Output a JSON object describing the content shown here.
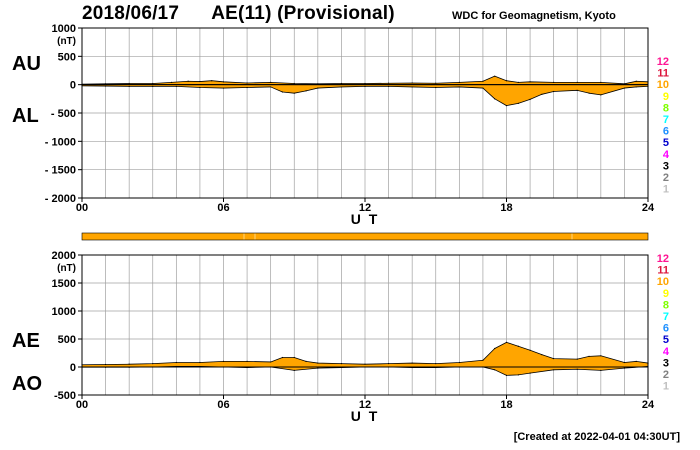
{
  "header": {
    "date": "2018/06/17",
    "title": "AE(11) (Provisional)",
    "credit": "WDC for Geomagnetism, Kyoto",
    "created": "[Created at 2022-04-01 04:30UT]"
  },
  "colors": {
    "fill": "#ffa500",
    "outline": "#000000",
    "grid": "#a0a0a0",
    "status_bar": "#ffa500"
  },
  "station_count_legend": [
    {
      "label": "12",
      "color": "#ff1493"
    },
    {
      "label": "11",
      "color": "#dc143c"
    },
    {
      "label": "10",
      "color": "#ffa500"
    },
    {
      "label": "9",
      "color": "#ffff00"
    },
    {
      "label": "8",
      "color": "#7fff00"
    },
    {
      "label": "7",
      "color": "#00ffff"
    },
    {
      "label": "6",
      "color": "#1e90ff"
    },
    {
      "label": "5",
      "color": "#0000cd"
    },
    {
      "label": "4",
      "color": "#ff00ff"
    },
    {
      "label": "3",
      "color": "#000000"
    },
    {
      "label": "2",
      "color": "#808080"
    },
    {
      "label": "1",
      "color": "#c0c0c0"
    }
  ],
  "chart_data": [
    {
      "type": "area",
      "panel": "AU/AL",
      "upper_label": "AU",
      "lower_label": "AL",
      "unit": "(nT)",
      "xlabel": "U T",
      "xlim": [
        0,
        24
      ],
      "ylim": [
        -2000,
        1000
      ],
      "x_ticks": [
        "00",
        "06",
        "12",
        "18",
        "24"
      ],
      "y_ticks": [
        "1000",
        "500",
        "0",
        "- 500",
        "- 1000",
        "- 1500",
        "- 2000"
      ],
      "grid": true,
      "series": [
        {
          "name": "AU",
          "x": [
            0,
            1,
            2,
            3,
            3.8,
            4.5,
            5,
            5.5,
            6,
            7,
            8,
            9,
            10,
            11,
            12,
            13,
            14,
            15,
            16,
            17,
            17.5,
            18,
            18.5,
            19,
            20,
            21,
            22,
            23,
            23.5,
            24
          ],
          "values": [
            10,
            15,
            20,
            20,
            40,
            60,
            55,
            70,
            50,
            30,
            40,
            20,
            15,
            20,
            20,
            25,
            30,
            25,
            40,
            60,
            150,
            70,
            40,
            50,
            40,
            40,
            40,
            15,
            60,
            50
          ]
        },
        {
          "name": "AL",
          "x": [
            0,
            1,
            2,
            3,
            4,
            5,
            6,
            7,
            8,
            8.5,
            9,
            9.5,
            10,
            11,
            12,
            13,
            14,
            15,
            16,
            17,
            17.5,
            18,
            18.5,
            19,
            19.5,
            20,
            21,
            21.5,
            22,
            23,
            23.5,
            24
          ],
          "values": [
            -20,
            -25,
            -30,
            -30,
            -30,
            -50,
            -60,
            -50,
            -40,
            -130,
            -150,
            -110,
            -60,
            -40,
            -30,
            -30,
            -40,
            -50,
            -40,
            -60,
            -250,
            -370,
            -330,
            -260,
            -170,
            -120,
            -100,
            -150,
            -180,
            -60,
            -40,
            -30
          ]
        }
      ]
    },
    {
      "type": "area",
      "panel": "AE/AO",
      "upper_label": "AE",
      "lower_label": "AO",
      "unit": "(nT)",
      "xlabel": "U T",
      "xlim": [
        0,
        24
      ],
      "ylim": [
        -500,
        2000
      ],
      "x_ticks": [
        "00",
        "06",
        "12",
        "18",
        "24"
      ],
      "y_ticks": [
        "2000",
        "1500",
        "1000",
        "500",
        "0",
        "-500"
      ],
      "grid": true,
      "series": [
        {
          "name": "AE",
          "x": [
            0,
            1,
            2,
            3,
            4,
            5,
            6,
            7,
            8,
            8.5,
            9,
            9.5,
            10,
            11,
            12,
            13,
            14,
            15,
            16,
            17,
            17.5,
            18,
            18.5,
            19,
            19.5,
            20,
            21,
            21.5,
            22,
            23,
            23.5,
            24
          ],
          "values": [
            40,
            45,
            50,
            60,
            80,
            80,
            100,
            100,
            90,
            170,
            170,
            100,
            70,
            60,
            50,
            60,
            70,
            60,
            80,
            120,
            330,
            440,
            370,
            300,
            220,
            150,
            140,
            190,
            200,
            80,
            100,
            70
          ]
        },
        {
          "name": "AO",
          "x": [
            0,
            1,
            2,
            3,
            4,
            5,
            6,
            7,
            8,
            9,
            10,
            11,
            12,
            13,
            14,
            15,
            16,
            17,
            17.5,
            18,
            18.5,
            19,
            20,
            21,
            22,
            23,
            24
          ],
          "values": [
            -5,
            -5,
            -5,
            0,
            10,
            10,
            0,
            -10,
            0,
            -60,
            -20,
            -10,
            0,
            0,
            -10,
            -10,
            0,
            0,
            -50,
            -150,
            -140,
            -110,
            -50,
            -40,
            -60,
            -20,
            10
          ]
        }
      ]
    }
  ]
}
